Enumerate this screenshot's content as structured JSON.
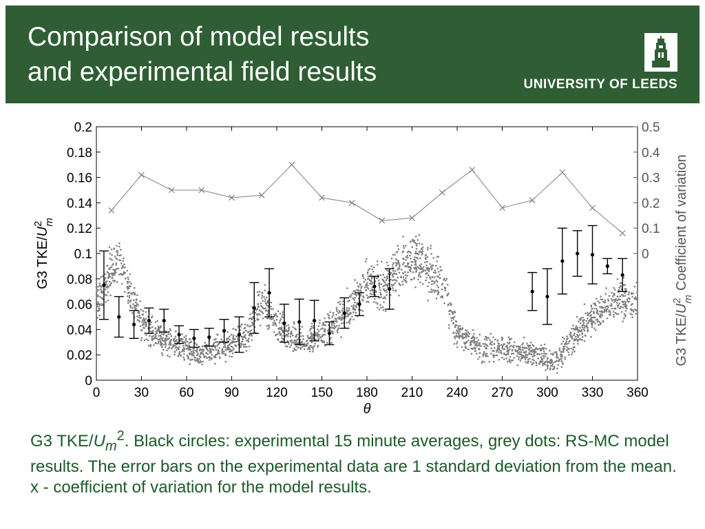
{
  "header": {
    "title_line1": "Comparison of model results",
    "title_line2": "and experimental field results",
    "logo_text": "UNIVERSITY OF LEEDS",
    "background_color": "#2f5d34",
    "logo_icon": "university-tower-icon"
  },
  "chart_data": {
    "type": "scatter",
    "xlabel": "θ",
    "ylabel": "G3 TKE/U_m^2",
    "ylabel_parts": {
      "main": "G3 TKE/",
      "var": "U",
      "sup": "2",
      "sub": "m"
    },
    "y2label": "G3 TKE/U_m^2  Coefficient of variation",
    "y2label_parts": {
      "main": "G3 TKE/",
      "var": "U",
      "sup": "2",
      "sub": "m",
      "suffix": "Coefficient of variation"
    },
    "xlim": [
      0,
      360
    ],
    "ylim": [
      0,
      0.2
    ],
    "y2lim": [
      -0.5,
      0.5
    ],
    "x_ticks": [
      "0",
      "30",
      "60",
      "90",
      "120",
      "150",
      "180",
      "210",
      "240",
      "270",
      "300",
      "330",
      "360"
    ],
    "y_ticks": [
      "0",
      "0.02",
      "0.04",
      "0.06",
      "0.08",
      "0.1",
      "0.12",
      "0.14",
      "0.16",
      "0.18",
      "0.2"
    ],
    "y2_ticks": [
      "0",
      "0.1",
      "0.2",
      "0.3",
      "0.4",
      "0.5"
    ],
    "grid": false,
    "series": [
      {
        "name": "experimental 15 minute averages",
        "marker": "circle-errorbar",
        "color": "#000000",
        "axis": "left",
        "x": [
          5,
          15,
          25,
          35,
          45,
          55,
          65,
          75,
          85,
          95,
          105,
          115,
          125,
          135,
          145,
          155,
          165,
          175,
          185,
          195,
          290,
          300,
          310,
          320,
          330,
          340,
          350
        ],
        "y": [
          0.075,
          0.05,
          0.044,
          0.047,
          0.047,
          0.036,
          0.033,
          0.034,
          0.039,
          0.036,
          0.057,
          0.069,
          0.045,
          0.046,
          0.047,
          0.037,
          0.053,
          0.06,
          0.074,
          0.072,
          0.07,
          0.066,
          0.094,
          0.1,
          0.099,
          0.09,
          0.083
        ],
        "err": [
          0.027,
          0.016,
          0.011,
          0.01,
          0.009,
          0.007,
          0.007,
          0.007,
          0.009,
          0.014,
          0.02,
          0.019,
          0.015,
          0.018,
          0.016,
          0.009,
          0.012,
          0.009,
          0.008,
          0.016,
          0.015,
          0.022,
          0.026,
          0.018,
          0.023,
          0.006,
          0.013
        ]
      },
      {
        "name": "RS-MC model results",
        "marker": "dot",
        "color": "#808080",
        "axis": "left",
        "profile_x": [
          0,
          8,
          15,
          22,
          30,
          45,
          60,
          70,
          80,
          90,
          100,
          108,
          112,
          120,
          130,
          140,
          150,
          160,
          170,
          180,
          190,
          200,
          210,
          220,
          230,
          240,
          255,
          270,
          290,
          300,
          305,
          310,
          315,
          325,
          335,
          345,
          360
        ],
        "profile_y": [
          0.06,
          0.082,
          0.095,
          0.07,
          0.045,
          0.032,
          0.024,
          0.02,
          0.025,
          0.028,
          0.034,
          0.058,
          0.06,
          0.042,
          0.033,
          0.031,
          0.036,
          0.047,
          0.058,
          0.075,
          0.072,
          0.087,
          0.097,
          0.088,
          0.075,
          0.038,
          0.025,
          0.025,
          0.022,
          0.017,
          0.015,
          0.022,
          0.03,
          0.045,
          0.055,
          0.062,
          0.063
        ]
      },
      {
        "name": "coefficient of variation",
        "marker": "x-line",
        "color": "#808080",
        "axis": "right",
        "x": [
          10,
          30,
          50,
          70,
          90,
          110,
          130,
          150,
          170,
          190,
          210,
          230,
          250,
          270,
          290,
          310,
          330,
          350
        ],
        "y": [
          0.17,
          0.31,
          0.25,
          0.25,
          0.22,
          0.23,
          0.35,
          0.22,
          0.2,
          0.13,
          0.14,
          0.24,
          0.33,
          0.18,
          0.21,
          0.32,
          0.18,
          0.08
        ]
      }
    ]
  },
  "caption": {
    "prefix": "G3 TKE/",
    "var": "U",
    "sub": "m",
    "sup": "2",
    "text": ". Black circles: experimental 15 minute averages, grey dots: RS-MC model results. The error bars on the experimental data are 1 standard deviation from the mean.  x - coefficient of variation for the model results."
  }
}
